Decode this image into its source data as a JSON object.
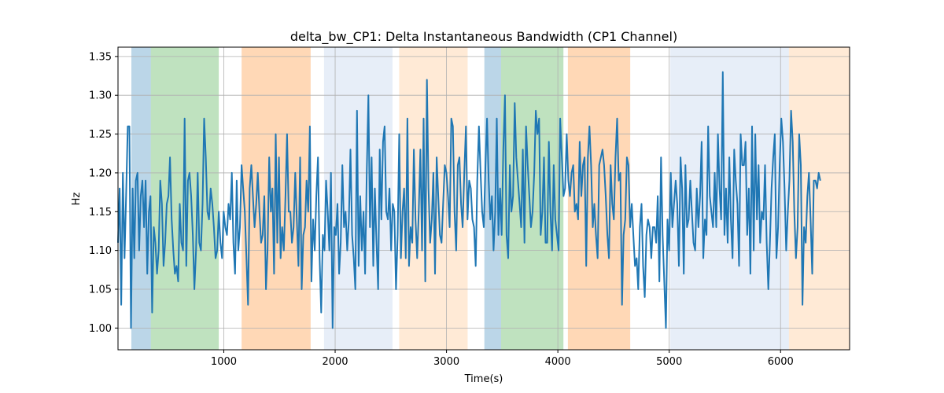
{
  "chart_data": {
    "type": "line",
    "title": "delta_bw_CP1: Delta Instantaneous Bandwidth (CP1 Channel)",
    "xlabel": "Time(s)",
    "ylabel": "Hz",
    "xlim": [
      50,
      6620
    ],
    "ylim": [
      0.972,
      1.362
    ],
    "xticks": [
      1000,
      2000,
      3000,
      4000,
      5000,
      6000
    ],
    "yticks": [
      1.0,
      1.05,
      1.1,
      1.15,
      1.2,
      1.25,
      1.3,
      1.35
    ],
    "ytick_labels": [
      "1.00",
      "1.05",
      "1.10",
      "1.15",
      "1.20",
      "1.25",
      "1.30",
      "1.35"
    ],
    "grid": true,
    "line_color": "#1f77b4",
    "bands": [
      {
        "x0": 170,
        "x1": 345,
        "color": "#1f77b4",
        "opacity": 0.3
      },
      {
        "x0": 345,
        "x1": 955,
        "color": "#2ca02c",
        "opacity": 0.3
      },
      {
        "x0": 1160,
        "x1": 1780,
        "color": "#ff7f0e",
        "opacity": 0.3
      },
      {
        "x0": 1900,
        "x1": 2515,
        "color": "#aec7e8",
        "opacity": 0.3
      },
      {
        "x0": 2575,
        "x1": 3190,
        "color": "#ffbb78",
        "opacity": 0.3
      },
      {
        "x0": 3340,
        "x1": 3490,
        "color": "#1f77b4",
        "opacity": 0.3
      },
      {
        "x0": 3490,
        "x1": 4050,
        "color": "#2ca02c",
        "opacity": 0.3
      },
      {
        "x0": 4090,
        "x1": 4650,
        "color": "#ff7f0e",
        "opacity": 0.3
      },
      {
        "x0": 5010,
        "x1": 6075,
        "color": "#aec7e8",
        "opacity": 0.3
      },
      {
        "x0": 6075,
        "x1": 6620,
        "color": "#ffbb78",
        "opacity": 0.3
      }
    ],
    "x_start": 50,
    "x_step": 14.6,
    "values": [
      1.11,
      1.18,
      1.03,
      1.2,
      1.09,
      1.17,
      1.26,
      1.26,
      1.0,
      1.18,
      1.09,
      1.19,
      1.2,
      1.1,
      1.17,
      1.19,
      1.13,
      1.19,
      1.07,
      1.15,
      1.17,
      1.02,
      1.13,
      1.11,
      1.07,
      1.1,
      1.19,
      1.16,
      1.08,
      1.11,
      1.16,
      1.17,
      1.22,
      1.14,
      1.1,
      1.07,
      1.08,
      1.06,
      1.16,
      1.11,
      1.1,
      1.27,
      1.08,
      1.19,
      1.2,
      1.17,
      1.12,
      1.05,
      1.1,
      1.2,
      1.11,
      1.1,
      1.16,
      1.27,
      1.22,
      1.15,
      1.14,
      1.18,
      1.16,
      1.13,
      1.09,
      1.1,
      1.15,
      1.11,
      1.09,
      1.15,
      1.13,
      1.12,
      1.16,
      1.14,
      1.2,
      1.11,
      1.07,
      1.19,
      1.1,
      1.13,
      1.21,
      1.18,
      1.15,
      1.09,
      1.03,
      1.18,
      1.21,
      1.17,
      1.13,
      1.16,
      1.2,
      1.15,
      1.11,
      1.12,
      1.17,
      1.05,
      1.1,
      1.22,
      1.15,
      1.18,
      1.07,
      1.25,
      1.11,
      1.22,
      1.09,
      1.13,
      1.1,
      1.17,
      1.25,
      1.15,
      1.15,
      1.11,
      1.13,
      1.2,
      1.14,
      1.08,
      1.22,
      1.05,
      1.12,
      1.13,
      1.19,
      1.15,
      1.26,
      1.06,
      1.14,
      1.1,
      1.17,
      1.22,
      1.09,
      1.02,
      1.12,
      1.1,
      1.19,
      1.15,
      1.1,
      1.2,
      1.0,
      1.13,
      1.12,
      1.16,
      1.07,
      1.11,
      1.21,
      1.13,
      1.15,
      1.1,
      1.14,
      1.23,
      1.12,
      1.09,
      1.05,
      1.28,
      1.08,
      1.17,
      1.1,
      1.15,
      1.07,
      1.2,
      1.3,
      1.13,
      1.22,
      1.08,
      1.18,
      1.11,
      1.05,
      1.23,
      1.14,
      1.24,
      1.26,
      1.15,
      1.14,
      1.18,
      1.1,
      1.16,
      1.15,
      1.05,
      1.12,
      1.25,
      1.09,
      1.15,
      1.18,
      1.09,
      1.27,
      1.08,
      1.13,
      1.11,
      1.23,
      1.14,
      1.09,
      1.15,
      1.23,
      1.1,
      1.27,
      1.06,
      1.32,
      1.18,
      1.11,
      1.14,
      1.2,
      1.07,
      1.22,
      1.17,
      1.12,
      1.11,
      1.16,
      1.21,
      1.2,
      1.17,
      1.13,
      1.27,
      1.26,
      1.15,
      1.1,
      1.21,
      1.22,
      1.16,
      1.13,
      1.2,
      1.26,
      1.14,
      1.19,
      1.18,
      1.14,
      1.13,
      1.08,
      1.19,
      1.26,
      1.2,
      1.15,
      1.13,
      1.21,
      1.27,
      1.19,
      1.14,
      1.17,
      1.1,
      1.15,
      1.27,
      1.12,
      1.18,
      1.12,
      1.23,
      1.3,
      1.12,
      1.09,
      1.21,
      1.15,
      1.17,
      1.29,
      1.22,
      1.19,
      1.16,
      1.13,
      1.23,
      1.11,
      1.26,
      1.21,
      1.17,
      1.13,
      1.15,
      1.2,
      1.28,
      1.25,
      1.27,
      1.12,
      1.15,
      1.22,
      1.11,
      1.11,
      1.24,
      1.15,
      1.1,
      1.21,
      1.14,
      1.12,
      1.1,
      1.27,
      1.22,
      1.17,
      1.18,
      1.25,
      1.19,
      1.17,
      1.2,
      1.21,
      1.15,
      1.16,
      1.14,
      1.24,
      1.17,
      1.21,
      1.22,
      1.08,
      1.22,
      1.26,
      1.21,
      1.13,
      1.16,
      1.12,
      1.09,
      1.21,
      1.22,
      1.23,
      1.21,
      1.17,
      1.12,
      1.09,
      1.21,
      1.16,
      1.14,
      1.22,
      1.27,
      1.19,
      1.2,
      1.03,
      1.12,
      1.14,
      1.22,
      1.21,
      1.13,
      1.16,
      1.12,
      1.08,
      1.09,
      1.05,
      1.13,
      1.16,
      1.08,
      1.04,
      1.12,
      1.14,
      1.13,
      1.09,
      1.13,
      1.13,
      1.11,
      1.17,
      1.06,
      1.22,
      1.12,
      1.06,
      1.0,
      1.14,
      1.1,
      1.2,
      1.13,
      1.16,
      1.19,
      1.16,
      1.08,
      1.22,
      1.18,
      1.07,
      1.21,
      1.13,
      1.14,
      1.19,
      1.15,
      1.11,
      1.1,
      1.18,
      1.13,
      1.17,
      1.24,
      1.09,
      1.14,
      1.12,
      1.26,
      1.17,
      1.15,
      1.13,
      1.2,
      1.13,
      1.25,
      1.18,
      1.14,
      1.33,
      1.12,
      1.18,
      1.11,
      1.22,
      1.14,
      1.09,
      1.23,
      1.19,
      1.16,
      1.08,
      1.25,
      1.21,
      1.21,
      1.24,
      1.12,
      1.18,
      1.07,
      1.26,
      1.1,
      1.25,
      1.14,
      1.21,
      1.11,
      1.15,
      1.14,
      1.21,
      1.11,
      1.05,
      1.11,
      1.18,
      1.22,
      1.25,
      1.09,
      1.13,
      1.21,
      1.27,
      1.24,
      1.18,
      1.1,
      1.15,
      1.19,
      1.28,
      1.24,
      1.15,
      1.09,
      1.13,
      1.25,
      1.21,
      1.03,
      1.13,
      1.11,
      1.17,
      1.2,
      1.14,
      1.07,
      1.19,
      1.19,
      1.18,
      1.2,
      1.19
    ]
  }
}
